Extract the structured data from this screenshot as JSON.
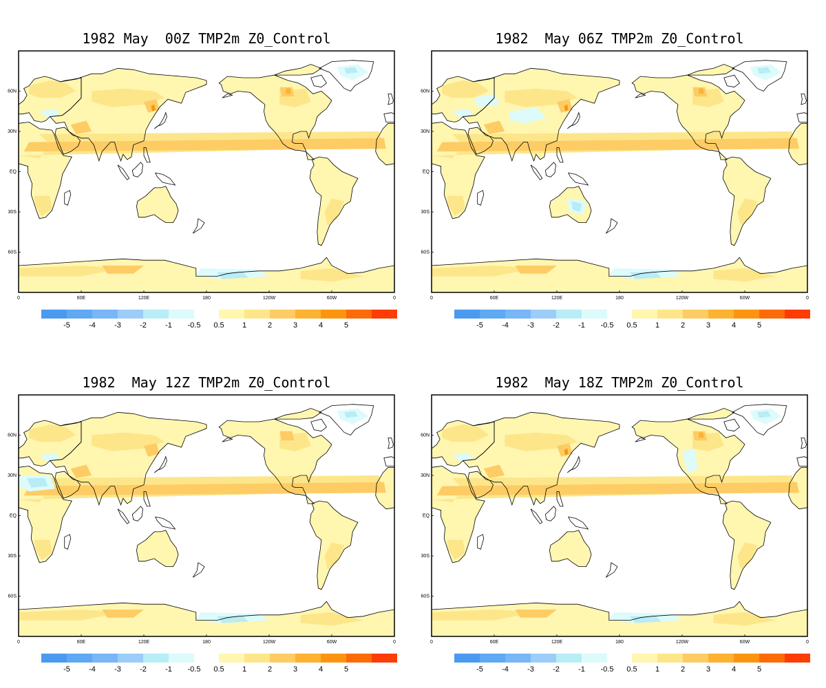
{
  "figure": {
    "colorbar": {
      "negative": [
        {
          "value": "-5",
          "color": "#4a9af0"
        },
        {
          "value": "-4",
          "color": "#5fa8f4"
        },
        {
          "value": "-3",
          "color": "#78b6f6"
        },
        {
          "value": "-2",
          "color": "#9bcdf8"
        },
        {
          "value": "-1",
          "color": "#b8ecf6"
        },
        {
          "value": "-0.5",
          "color": "#ddfbfb"
        }
      ],
      "positive": [
        {
          "value": "0.5",
          "color": "#fff6b0"
        },
        {
          "value": "1",
          "color": "#fde68a"
        },
        {
          "value": "2",
          "color": "#fdcc64"
        },
        {
          "value": "3",
          "color": "#fdb232"
        },
        {
          "value": "4",
          "color": "#fd9410"
        },
        {
          "value": "5",
          "color": "#fd6a08"
        },
        {
          "value": "",
          "color": "#fd3c04"
        }
      ]
    },
    "lat_labels": [
      "60N",
      "30N",
      "EQ",
      "30S",
      "60S"
    ],
    "lon_labels": [
      "0",
      "60E",
      "120E",
      "180",
      "120W",
      "60W",
      "0"
    ]
  },
  "chart_data": [
    {
      "type": "heatmap",
      "title": "1982 May  00Z TMP2m Z0_Control",
      "variable": "TMP2m",
      "experiment": "Z0_Control",
      "time": "00Z",
      "month": "May",
      "year": "1982",
      "lon_range": [
        0,
        360
      ],
      "lat_range": [
        -90,
        90
      ]
    },
    {
      "type": "heatmap",
      "title": "1982  May 06Z TMP2m Z0_Control",
      "variable": "TMP2m",
      "experiment": "Z0_Control",
      "time": "06Z",
      "month": "May",
      "year": "1982",
      "lon_range": [
        0,
        360
      ],
      "lat_range": [
        -90,
        90
      ]
    },
    {
      "type": "heatmap",
      "title": "1982  May 12Z TMP2m Z0_Control",
      "variable": "TMP2m",
      "experiment": "Z0_Control",
      "time": "12Z",
      "month": "May",
      "year": "1982",
      "lon_range": [
        0,
        360
      ],
      "lat_range": [
        -90,
        90
      ]
    },
    {
      "type": "heatmap",
      "title": "1982  May 18Z TMP2m Z0_Control",
      "variable": "TMP2m",
      "experiment": "Z0_Control",
      "time": "18Z",
      "month": "May",
      "year": "1982",
      "lon_range": [
        0,
        360
      ],
      "lat_range": [
        -90,
        90
      ]
    }
  ]
}
